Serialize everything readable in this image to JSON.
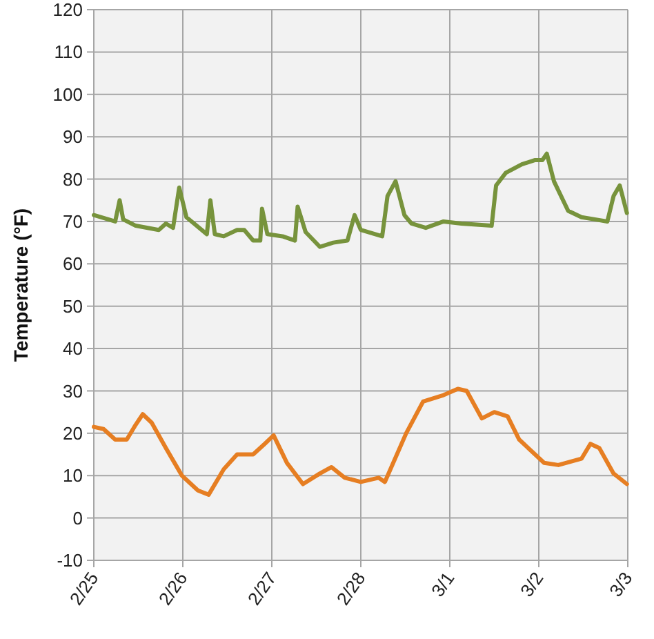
{
  "chart_data": {
    "type": "line",
    "ylabel": "Temperature (°F)",
    "xlim": [
      "--02-25",
      "--03-03"
    ],
    "xticks": [
      {
        "value": "--02-25",
        "label": "2/25"
      },
      {
        "value": "--02-26",
        "label": "2/26"
      },
      {
        "value": "--02-27",
        "label": "2/27"
      },
      {
        "value": "--02-28",
        "label": "2/28"
      },
      {
        "value": "--03-01",
        "label": "3/1"
      },
      {
        "value": "--03-02",
        "label": "3/2"
      },
      {
        "value": "--03-03",
        "label": "3/3"
      }
    ],
    "ylim": [
      -10,
      120
    ],
    "yticks": [
      -10,
      0,
      10,
      20,
      30,
      40,
      50,
      60,
      70,
      80,
      90,
      100,
      110,
      120
    ],
    "grid": true,
    "marker": "none",
    "line_style": "solid",
    "series": [
      {
        "color": "#77933c",
        "x": [
          "--02-25T00:00",
          "--02-25T05:46",
          "--02-25T06:58",
          "--02-25T07:55",
          "--02-25T11:17",
          "--02-25T17:31",
          "--02-25T19:26",
          "--02-25T21:22",
          "--02-25T23:02",
          "--02-26T00:58",
          "--02-26T06:29",
          "--02-26T07:26",
          "--02-26T08:38",
          "--02-26T11:02",
          "--02-26T14:38",
          "--02-26T16:34",
          "--02-26T18:58",
          "--02-26T20:53",
          "--02-26T21:22",
          "--02-26T22:48",
          "--02-27T02:53",
          "--02-27T06:14",
          "--02-27T06:58",
          "--02-27T09:07",
          "--02-27T12:58",
          "--02-27T16:34",
          "--02-27T20:24",
          "--02-27T22:19",
          "--02-28T00:00",
          "--02-28T05:46",
          "--02-28T07:12",
          "--02-28T09:22",
          "--02-28T11:46",
          "--02-28T13:41",
          "--02-28T17:31",
          "--02-28T22:19",
          "--03-01T03:07",
          "--03-01T11:17",
          "--03-01T12:29",
          "--03-01T15:07",
          "--03-01T19:26",
          "--03-01T23:02",
          "--03-02T00:58",
          "--03-02T02:10",
          "--03-02T04:05",
          "--03-02T07:55",
          "--03-02T11:31",
          "--03-02T15:07",
          "--03-02T18:29",
          "--03-02T20:10",
          "--03-02T21:50",
          "--03-02T23:46"
        ],
        "values": [
          71.5,
          70,
          75,
          70.5,
          69,
          68,
          69.5,
          68.5,
          78,
          71,
          67,
          75,
          67,
          66.5,
          68,
          68,
          65.5,
          65.5,
          73,
          67,
          66.5,
          65.5,
          73.5,
          67.5,
          64,
          65,
          65.5,
          71.5,
          68,
          66.5,
          76,
          79.5,
          71.5,
          69.5,
          68.5,
          70,
          69.5,
          69,
          78.5,
          81.5,
          83.5,
          84.5,
          84.5,
          86,
          79.5,
          72.5,
          71,
          70.5,
          70,
          76,
          78.5,
          72
        ]
      },
      {
        "color": "#e67e22",
        "x": [
          "--02-25T00:00",
          "--02-25T02:38",
          "--02-25T05:46",
          "--02-25T08:53",
          "--02-25T11:17",
          "--02-25T13:12",
          "--02-25T15:36",
          "--02-25T19:26",
          "--02-25T23:46",
          "--02-26T04:05",
          "--02-26T06:58",
          "--02-26T11:02",
          "--02-26T14:38",
          "--02-26T18:58",
          "--02-26T22:05",
          "--02-27T00:29",
          "--02-27T04:05",
          "--02-27T08:24",
          "--02-27T12:58",
          "--02-27T16:05",
          "--02-27T19:41",
          "--02-28T00:00",
          "--02-28T04:48",
          "--02-28T06:29",
          "--02-28T12:14",
          "--02-28T16:48",
          "--02-28T22:19",
          "--03-01T02:10",
          "--03-01T04:34",
          "--03-01T08:38",
          "--03-01T12:00",
          "--03-01T15:36",
          "--03-01T18:43",
          "--03-02T01:26",
          "--03-02T05:17",
          "--03-02T11:31",
          "--03-02T13:55",
          "--03-02T16:19",
          "--03-02T20:10",
          "--03-02T23:46"
        ],
        "values": [
          21.5,
          21,
          18.5,
          18.5,
          22,
          24.5,
          22.5,
          16.5,
          10,
          6.5,
          5.5,
          11.5,
          15,
          15,
          17.5,
          19.5,
          13,
          8,
          10.5,
          12,
          9.5,
          8.5,
          9.5,
          8.5,
          20,
          27.5,
          29,
          30.5,
          30,
          23.5,
          25,
          24,
          18.5,
          13,
          12.5,
          14,
          17.5,
          16.5,
          10.5,
          8
        ]
      }
    ]
  }
}
